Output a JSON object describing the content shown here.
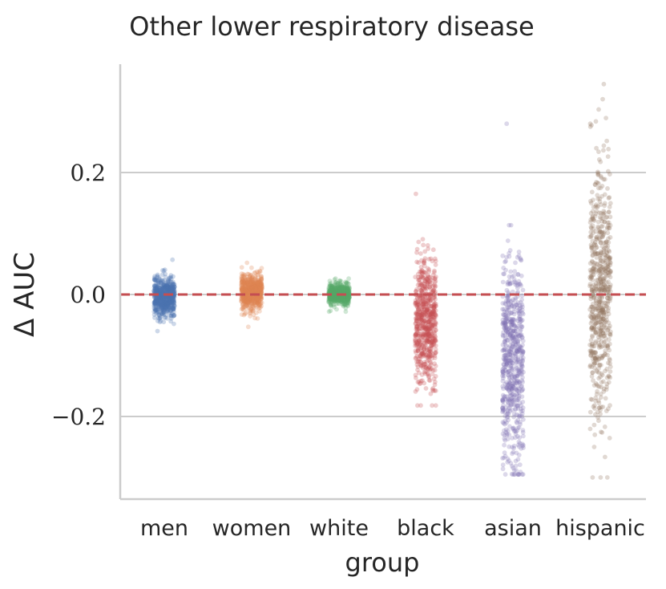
{
  "chart_data": {
    "type": "scatter",
    "subtype": "strip",
    "title": "Other lower respiratory disease",
    "xlabel": "group",
    "ylabel": "Δ AUC",
    "ylim": [
      -0.335,
      0.38
    ],
    "yticks": [
      -0.2,
      0.0,
      0.2
    ],
    "ytick_labels": [
      "−0.2",
      "0.0",
      "0.2"
    ],
    "grid": "horizontal",
    "reference_line": {
      "y": 0.0,
      "style": "dashed",
      "color": "#c44e52"
    },
    "categories": [
      "men",
      "women",
      "white",
      "black",
      "asian",
      "hispanic"
    ],
    "series": [
      {
        "name": "men",
        "color": "#4c72b0",
        "min": -0.06,
        "max": 0.057,
        "center": -0.005,
        "spread": 0.015,
        "n": 650
      },
      {
        "name": "women",
        "color": "#dd8452",
        "min": -0.053,
        "max": 0.052,
        "center": 0.004,
        "spread": 0.014,
        "n": 650
      },
      {
        "name": "white",
        "color": "#55a868",
        "min": -0.028,
        "max": 0.026,
        "center": 0.0,
        "spread": 0.008,
        "n": 650
      },
      {
        "name": "black",
        "color": "#c44e52",
        "min": -0.182,
        "max": 0.165,
        "center": -0.045,
        "spread": 0.052,
        "n": 650
      },
      {
        "name": "asian",
        "color": "#8172b3",
        "min": -0.295,
        "max": 0.28,
        "center": -0.11,
        "spread": 0.085,
        "n": 650
      },
      {
        "name": "hispanic",
        "color": "#937860",
        "min": -0.3,
        "max": 0.345,
        "center": 0.01,
        "spread": 0.1,
        "n": 650
      }
    ]
  }
}
